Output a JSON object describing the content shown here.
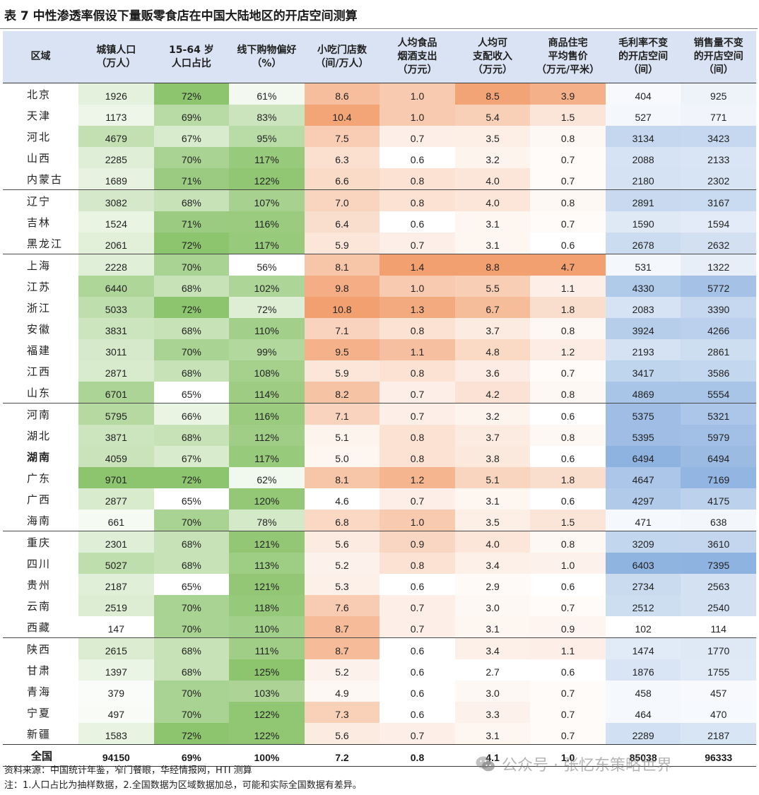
{
  "title": "表 7 中性渗透率假设下量贩零食店在中国大陆地区的开店空间测算",
  "headers": [
    [
      "区域"
    ],
    [
      "城镇人口",
      "（万人）"
    ],
    [
      "15-64 岁",
      "人口占比"
    ],
    [
      "线下购物偏好",
      "（%）"
    ],
    [
      "小吃门店数",
      "（间/万人）"
    ],
    [
      "人均食品",
      "烟酒支出",
      "（万元）"
    ],
    [
      "人均可",
      "支配收入",
      "（万元）"
    ],
    [
      "商品住宅",
      "平均售价",
      "（万元/平米）"
    ],
    [
      "毛利率不变",
      "的开店空间",
      "（间）"
    ],
    [
      "销售量不变",
      "的开店空间",
      "（间）"
    ]
  ],
  "rows": [
    {
      "region": "北京",
      "values": [
        "1926",
        "72%",
        "61%",
        "8.6",
        "1.0",
        "8.5",
        "3.9",
        "404",
        "925"
      ]
    },
    {
      "region": "天津",
      "values": [
        "1173",
        "69%",
        "83%",
        "10.4",
        "1.0",
        "5.4",
        "1.5",
        "527",
        "771"
      ]
    },
    {
      "region": "河北",
      "values": [
        "4679",
        "67%",
        "95%",
        "7.5",
        "0.7",
        "3.5",
        "0.8",
        "3134",
        "3423"
      ]
    },
    {
      "region": "山西",
      "values": [
        "2285",
        "70%",
        "117%",
        "6.3",
        "0.6",
        "3.2",
        "0.7",
        "2088",
        "2133"
      ]
    },
    {
      "region": "内蒙古",
      "values": [
        "1689",
        "71%",
        "122%",
        "6.6",
        "0.8",
        "4.0",
        "0.7",
        "2180",
        "2302"
      ]
    },
    {
      "region": "辽宁",
      "values": [
        "3082",
        "68%",
        "107%",
        "7.0",
        "0.8",
        "4.0",
        "0.8",
        "2891",
        "3167"
      ]
    },
    {
      "region": "吉林",
      "values": [
        "1524",
        "71%",
        "116%",
        "6.4",
        "0.6",
        "3.1",
        "0.7",
        "1590",
        "1594"
      ]
    },
    {
      "region": "黑龙江",
      "values": [
        "2061",
        "72%",
        "117%",
        "5.9",
        "0.7",
        "3.1",
        "0.6",
        "2678",
        "2632"
      ]
    },
    {
      "region": "上海",
      "values": [
        "2228",
        "70%",
        "56%",
        "8.1",
        "1.4",
        "8.8",
        "4.7",
        "531",
        "1322"
      ]
    },
    {
      "region": "江苏",
      "values": [
        "6440",
        "68%",
        "102%",
        "9.8",
        "1.0",
        "5.5",
        "1.1",
        "4330",
        "5772"
      ]
    },
    {
      "region": "浙江",
      "values": [
        "5033",
        "72%",
        "72%",
        "10.8",
        "1.3",
        "6.7",
        "1.8",
        "2083",
        "3390"
      ]
    },
    {
      "region": "安徽",
      "values": [
        "3831",
        "68%",
        "110%",
        "7.1",
        "0.8",
        "3.7",
        "0.8",
        "3924",
        "4266"
      ]
    },
    {
      "region": "福建",
      "values": [
        "3011",
        "70%",
        "99%",
        "9.5",
        "1.1",
        "4.8",
        "1.2",
        "2193",
        "2861"
      ]
    },
    {
      "region": "江西",
      "values": [
        "2871",
        "68%",
        "108%",
        "5.9",
        "0.8",
        "3.6",
        "0.7",
        "3417",
        "3586"
      ]
    },
    {
      "region": "山东",
      "values": [
        "6701",
        "65%",
        "114%",
        "8.2",
        "0.7",
        "4.2",
        "0.8",
        "4869",
        "5554"
      ]
    },
    {
      "region": "河南",
      "values": [
        "5795",
        "66%",
        "116%",
        "7.1",
        "0.7",
        "3.2",
        "0.6",
        "5375",
        "5321"
      ]
    },
    {
      "region": "湖北",
      "values": [
        "3871",
        "68%",
        "112%",
        "5.1",
        "0.8",
        "3.7",
        "0.8",
        "5395",
        "5979"
      ]
    },
    {
      "region": "湖南",
      "values": [
        "4059",
        "67%",
        "117%",
        "5.0",
        "0.8",
        "3.8",
        "0.6",
        "6494",
        "6494"
      ]
    },
    {
      "region": "广东",
      "values": [
        "9701",
        "72%",
        "62%",
        "8.1",
        "1.2",
        "5.1",
        "1.8",
        "4647",
        "7169"
      ]
    },
    {
      "region": "广西",
      "values": [
        "2877",
        "65%",
        "120%",
        "4.6",
        "0.7",
        "3.1",
        "0.6",
        "4297",
        "4175"
      ]
    },
    {
      "region": "海南",
      "values": [
        "661",
        "70%",
        "78%",
        "6.8",
        "1.0",
        "3.5",
        "1.5",
        "471",
        "638"
      ]
    },
    {
      "region": "重庆",
      "values": [
        "2301",
        "68%",
        "121%",
        "5.6",
        "0.9",
        "4.0",
        "0.8",
        "3209",
        "3610"
      ]
    },
    {
      "region": "四川",
      "values": [
        "5027",
        "68%",
        "113%",
        "5.2",
        "0.8",
        "3.4",
        "1.0",
        "6403",
        "7395"
      ]
    },
    {
      "region": "贵州",
      "values": [
        "2187",
        "65%",
        "121%",
        "5.3",
        "0.6",
        "2.9",
        "0.6",
        "2734",
        "2563"
      ]
    },
    {
      "region": "云南",
      "values": [
        "2519",
        "70%",
        "118%",
        "7.6",
        "0.7",
        "3.0",
        "0.7",
        "2512",
        "2540"
      ]
    },
    {
      "region": "西藏",
      "values": [
        "147",
        "70%",
        "110%",
        "8.7",
        "0.7",
        "3.1",
        "0.9",
        "102",
        "114"
      ]
    },
    {
      "region": "陕西",
      "values": [
        "2615",
        "68%",
        "111%",
        "8.7",
        "0.6",
        "3.4",
        "1.1",
        "1474",
        "1770"
      ]
    },
    {
      "region": "甘肃",
      "values": [
        "1397",
        "68%",
        "125%",
        "5.2",
        "0.6",
        "2.7",
        "0.6",
        "1876",
        "1755"
      ]
    },
    {
      "region": "青海",
      "values": [
        "379",
        "70%",
        "103%",
        "4.9",
        "0.6",
        "3.0",
        "0.7",
        "458",
        "457"
      ]
    },
    {
      "region": "宁夏",
      "values": [
        "497",
        "70%",
        "122%",
        "7.3",
        "0.6",
        "3.3",
        "0.7",
        "464",
        "470"
      ]
    },
    {
      "region": "新疆",
      "values": [
        "1583",
        "72%",
        "122%",
        "5.6",
        "0.7",
        "3.1",
        "0.7",
        "2289",
        "2187"
      ]
    }
  ],
  "total": {
    "region": "全国",
    "values": [
      "94150",
      "69%",
      "100%",
      "7.2",
      "0.8",
      "4.1",
      "1.0",
      "85038",
      "96333"
    ]
  },
  "notes": [
    "资料来源：中国统计年鉴，窄门餐眼，华经情报网，HTI 测算",
    "注：1.人口占比为抽样数据，2.全国数据为区域数据加总，可能和实际全国数据有差异。"
  ],
  "watermark": "公众号 · 张忆东策略世界",
  "colors": {
    "header_bg": "#d9e3f3",
    "green_high": "#8dc46e",
    "orange_high": "#f2a070",
    "blue_high": "#8fb3e0"
  }
}
